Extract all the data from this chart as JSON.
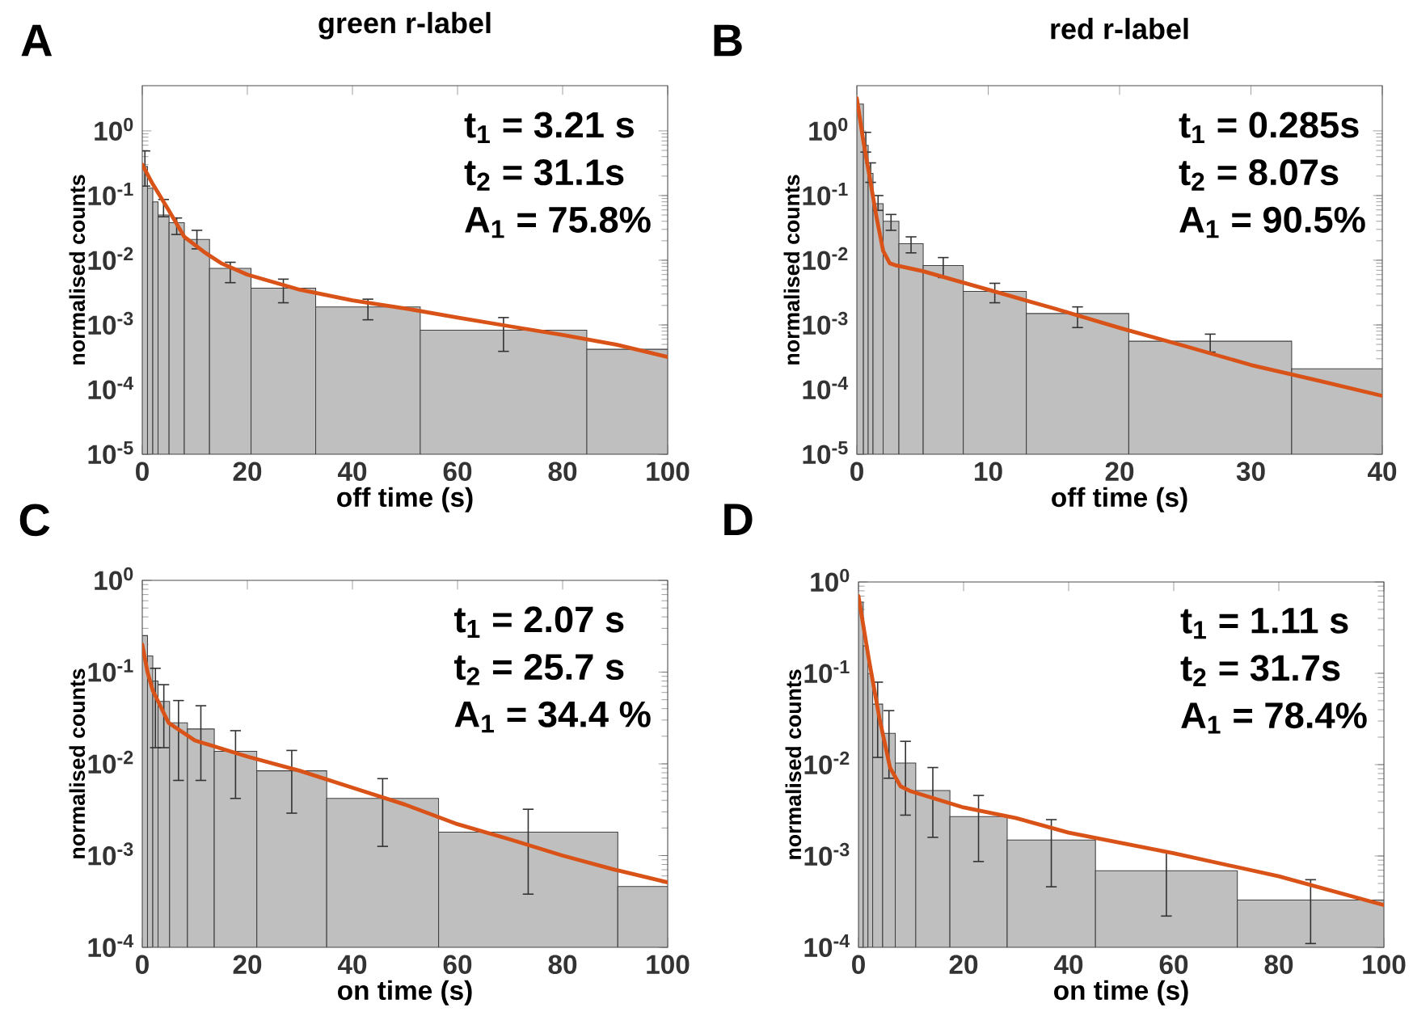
{
  "chart_data": [
    {
      "type": "histogram",
      "title": "green r-label",
      "xlabel": "off time (s)",
      "ylabel": "normalised counts",
      "log": "y",
      "xlim": [
        0,
        100
      ],
      "ylim": [
        1e-05,
        5
      ],
      "xticks": [
        0,
        20,
        40,
        60,
        80,
        100
      ],
      "yticks": [
        {
          "value": 1e-05,
          "label": "10$^{-5}$"
        },
        {
          "value": 0.0001,
          "label": "10$^{-4}$"
        },
        {
          "value": 0.001,
          "label": "10$^{-3}$"
        },
        {
          "value": 0.01,
          "label": "10$^{-2}$"
        },
        {
          "value": 0.1,
          "label": "10$^{-1}$"
        },
        {
          "value": 1,
          "label": "10$^{0}$"
        }
      ],
      "annotations": [
        "A",
        "t$_{1}$ = 3.21 s",
        "t$_{2}$ = 31.1s",
        "A$_{1}$ = 75.8%"
      ],
      "series": [
        {
          "type": "histogram",
          "color": "#bfbfbf",
          "bins": [
            0,
            1,
            2,
            3,
            5.1,
            8.0,
            12.8,
            20.7,
            33.0,
            52.9,
            84.6,
            100
          ],
          "values": [
            0.28,
            0.13,
            0.08,
            0.05,
            0.038,
            0.021,
            0.0075,
            0.0037,
            0.0019,
            0.00083,
            0.00042
          ],
          "errors": [
            [
              0.14,
              0.49
            ],
            null,
            null,
            [
              0.047,
              0.087
            ],
            [
              0.025,
              0.045
            ],
            [
              0.015,
              0.029
            ],
            [
              0.0045,
              0.0093
            ],
            [
              0.0022,
              0.0051
            ],
            [
              0.0012,
              0.0025
            ],
            [
              0.00039,
              0.0013
            ],
            null
          ]
        },
        {
          "type": "line",
          "color": "#d95319",
          "x": [
            0,
            2,
            5,
            8,
            12,
            15,
            20,
            30,
            40,
            50,
            60,
            70,
            80,
            90,
            100
          ],
          "values": [
            0.3,
            0.15,
            0.06,
            0.023,
            0.013,
            0.009,
            0.006,
            0.0035,
            0.0024,
            0.0018,
            0.0013,
            0.00095,
            0.0007,
            0.0005,
            0.00032
          ]
        }
      ]
    },
    {
      "type": "histogram",
      "title": "red r-label",
      "xlabel": "off time (s)",
      "ylabel": "normalised counts",
      "log": "y",
      "xlim": [
        0,
        40
      ],
      "ylim": [
        1e-05,
        5
      ],
      "xticks": [
        0,
        10,
        20,
        30,
        40
      ],
      "yticks": [
        {
          "value": 1e-05,
          "label": "10$^{-5}$"
        },
        {
          "value": 0.0001,
          "label": "10$^{-4}$"
        },
        {
          "value": 0.001,
          "label": "10$^{-3}$"
        },
        {
          "value": 0.01,
          "label": "10$^{-2}$"
        },
        {
          "value": 0.1,
          "label": "10$^{-1}$"
        },
        {
          "value": 1,
          "label": "10$^{0}$"
        }
      ],
      "annotations": [
        "B",
        "t$_{1}$ = 0.285s",
        "t$_{2}$ = 8.07s",
        "A$_{1}$ = 90.5%"
      ],
      "series": [
        {
          "type": "histogram",
          "color": "#bfbfbf",
          "bins": [
            0,
            0.5,
            0.86,
            1.23,
            2.0,
            3.2,
            5.05,
            8.1,
            12.9,
            20.7,
            33.1,
            40
          ],
          "values": [
            2.6,
            0.6,
            0.22,
            0.075,
            0.04,
            0.018,
            0.0083,
            0.0033,
            0.0015,
            0.00056,
            0.00021
          ],
          "errors": [
            null,
            [
              0.47,
              0.95
            ],
            [
              0.16,
              0.32
            ],
            [
              0.059,
              0.1
            ],
            [
              0.029,
              0.051
            ],
            [
              0.013,
              0.023
            ],
            [
              0.0054,
              0.011
            ],
            [
              0.0022,
              0.0044
            ],
            [
              0.00091,
              0.0019
            ],
            [
              0.00038,
              0.00072
            ],
            null
          ]
        },
        {
          "type": "line",
          "color": "#d95319",
          "x": [
            0,
            0.5,
            1,
            1.5,
            2,
            2.5,
            3,
            5,
            10,
            15,
            20,
            25,
            30,
            35,
            40
          ],
          "values": [
            3.2,
            0.68,
            0.18,
            0.046,
            0.014,
            0.009,
            0.0083,
            0.0068,
            0.0035,
            0.0018,
            0.0009,
            0.00047,
            0.00024,
            0.00014,
            8e-05
          ]
        }
      ]
    },
    {
      "type": "histogram",
      "xlabel": "on time (s)",
      "ylabel": "normalised counts",
      "log": "y",
      "xlim": [
        0,
        100
      ],
      "ylim": [
        0.0001,
        1
      ],
      "xticks": [
        0,
        20,
        40,
        60,
        80,
        100
      ],
      "yticks": [
        {
          "value": 0.0001,
          "label": "10$^{-4}$"
        },
        {
          "value": 0.001,
          "label": "10$^{-3}$"
        },
        {
          "value": 0.01,
          "label": "10$^{-2}$"
        },
        {
          "value": 0.1,
          "label": "10$^{-1}$"
        },
        {
          "value": 1,
          "label": "10$^{0}$"
        }
      ],
      "annotations": [
        "C",
        "t$_{1}$ = 2.07 s",
        "t$_{2}$ = 25.7 s",
        "A$_{1}$ = 34.4 %"
      ],
      "series": [
        {
          "type": "histogram",
          "color": "#bfbfbf",
          "bins": [
            0,
            1,
            2,
            3,
            5.2,
            8.6,
            13.7,
            21.8,
            35.1,
            56.4,
            90.5,
            100
          ],
          "values": [
            0.25,
            0.15,
            0.08,
            0.048,
            0.028,
            0.024,
            0.0137,
            0.0084,
            0.0042,
            0.0018,
            0.00046
          ],
          "errors": [
            null,
            null,
            [
              0.015,
              0.11
            ],
            [
              0.015,
              0.073
            ],
            [
              0.0066,
              0.049
            ],
            [
              0.0066,
              0.043
            ],
            [
              0.0042,
              0.023
            ],
            [
              0.0029,
              0.014
            ],
            [
              0.00126,
              0.0069
            ],
            [
              0.00038,
              0.0032
            ],
            null
          ]
        },
        {
          "type": "line",
          "color": "#d95319",
          "x": [
            0,
            1,
            2,
            5,
            10,
            20,
            30,
            40,
            50,
            60,
            70,
            80,
            90,
            100
          ],
          "values": [
            0.2,
            0.1,
            0.063,
            0.028,
            0.018,
            0.012,
            0.0084,
            0.0055,
            0.0036,
            0.0022,
            0.0015,
            0.001,
            0.0007,
            0.00051
          ]
        }
      ]
    },
    {
      "type": "histogram",
      "xlabel": "on time (s)",
      "ylabel": "normalised counts",
      "log": "y",
      "xlim": [
        0,
        100
      ],
      "ylim": [
        0.0001,
        1
      ],
      "xticks": [
        0,
        20,
        40,
        60,
        80,
        100
      ],
      "yticks": [
        {
          "value": 0.0001,
          "label": "10$^{-4}$"
        },
        {
          "value": 0.001,
          "label": "10$^{-3}$"
        },
        {
          "value": 0.01,
          "label": "10$^{-2}$"
        },
        {
          "value": 0.1,
          "label": "10$^{-1}$"
        },
        {
          "value": 1,
          "label": "10$^{0}$"
        }
      ],
      "annotations": [
        "D",
        "t$_{1}$ = 1.11 s",
        "t$_{2}$ = 31.7s",
        "A$_{1}$ = 78.4%"
      ],
      "series": [
        {
          "type": "histogram",
          "color": "#bfbfbf",
          "bins": [
            0,
            0.9,
            1.8,
            2.7,
            4.6,
            7.0,
            10.9,
            17.4,
            28.3,
            45.1,
            72.1,
            100
          ],
          "values": [
            0.6,
            0.2,
            0.1,
            0.046,
            0.022,
            0.0104,
            0.0052,
            0.0027,
            0.0015,
            0.00069,
            0.00033
          ],
          "errors": [
            null,
            null,
            null,
            [
              0.012,
              0.08
            ],
            [
              0.0071,
              0.039
            ],
            [
              0.0028,
              0.018
            ],
            [
              0.0016,
              0.0093
            ],
            [
              0.00087,
              0.0046
            ],
            [
              0.00046,
              0.0025
            ],
            [
              0.00022,
              0.0011
            ],
            [
              0.00011,
              0.00055
            ]
          ]
        },
        {
          "type": "line",
          "color": "#d95319",
          "x": [
            0,
            2,
            4,
            6,
            8,
            10,
            20,
            30,
            40,
            60,
            80,
            100
          ],
          "values": [
            0.7,
            0.14,
            0.032,
            0.0093,
            0.0058,
            0.0051,
            0.0034,
            0.0026,
            0.0018,
            0.00107,
            0.0006,
            0.00029
          ]
        }
      ]
    }
  ]
}
